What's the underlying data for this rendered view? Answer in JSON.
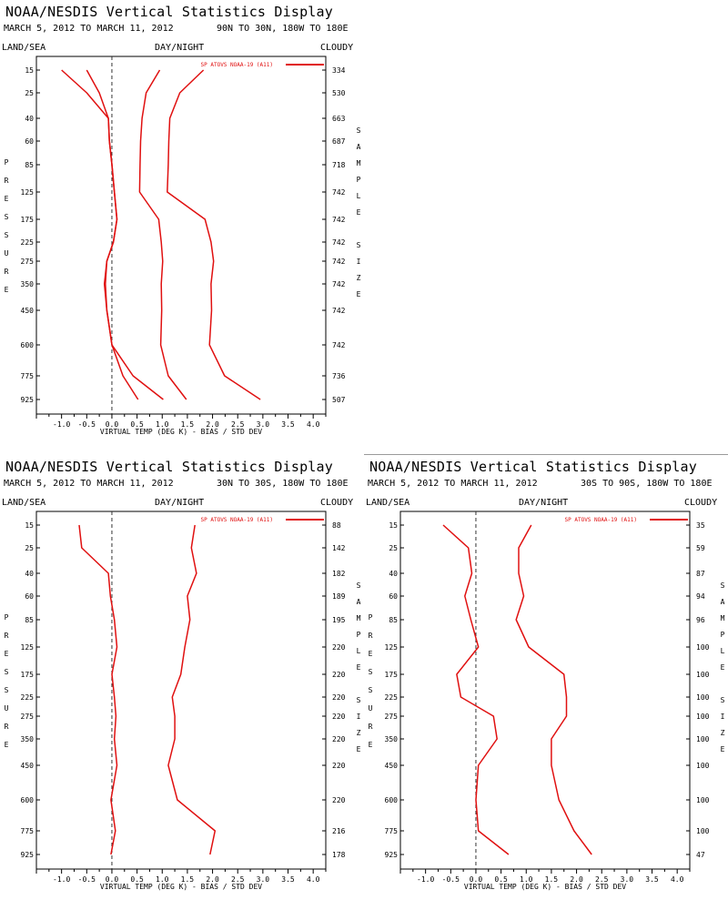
{
  "panels": [
    {
      "title": "NOAA/NESDIS Vertical Statistics Display",
      "date_range": "MARCH 5, 2012 TO MARCH 11, 2012",
      "region": "90N TO 30N, 180W TO 180E",
      "land_sea": "LAND/SEA",
      "day_night": "DAY/NIGHT",
      "cloudy": "CLOUDY"
    },
    {
      "title": "NOAA/NESDIS Vertical Statistics Display",
      "date_range": "MARCH 5, 2012 TO MARCH 11, 2012",
      "region": "30N TO 30S, 180W TO 180E",
      "land_sea": "LAND/SEA",
      "day_night": "DAY/NIGHT",
      "cloudy": "CLOUDY"
    },
    {
      "title": "NOAA/NESDIS Vertical Statistics Display",
      "date_range": "MARCH 5, 2012 TO MARCH 11, 2012",
      "region": "30S TO 90S, 180W TO 180E",
      "land_sea": "LAND/SEA",
      "day_night": "DAY/NIGHT",
      "cloudy": "CLOUDY"
    }
  ],
  "chart_data": [
    {
      "type": "line",
      "legend": "SP ATOVS NOAA-19 (A11)",
      "xlabel": "VIRTUAL TEMP (DEG K) - BIAS / STD DEV",
      "ylabel": "PRESSURE",
      "right_label": "SAMPLE SIZE",
      "xlim": [
        -1.5,
        4.25
      ],
      "x_ticks": [
        "-1.0",
        "-0.5",
        "0.0",
        "0.5",
        "1.0",
        "1.5",
        "2.0",
        "2.5",
        "3.0",
        "3.5",
        "4.0"
      ],
      "pressure_levels": [
        "15",
        "25",
        "40",
        "60",
        "85",
        "125",
        "175",
        "225",
        "275",
        "350",
        "450",
        "600",
        "775",
        "925"
      ],
      "sample_size": [
        "334",
        "530",
        "663",
        "687",
        "718",
        "742",
        "742",
        "742",
        "742",
        "742",
        "742",
        "742",
        "736",
        "507"
      ],
      "series": [
        {
          "name": "bias",
          "values": [
            -0.5,
            -0.25,
            -0.07,
            -0.05,
            0.0,
            0.05,
            0.1,
            0.03,
            -0.1,
            -0.13,
            -0.1,
            0.0,
            0.22,
            0.52
          ]
        },
        {
          "name": "std_dev",
          "values": [
            0.95,
            0.68,
            0.6,
            0.57,
            0.56,
            0.55,
            0.93,
            0.98,
            1.01,
            0.98,
            0.99,
            0.97,
            1.12,
            1.48
          ]
        },
        {
          "name": "bias",
          "values": [
            -1.0,
            -0.5,
            -0.07,
            -0.05,
            0.0,
            0.05,
            0.1,
            0.03,
            -0.1,
            -0.15,
            -0.1,
            0.0,
            0.42,
            1.02
          ]
        },
        {
          "name": "std_dev",
          "values": [
            1.82,
            1.35,
            1.15,
            1.13,
            1.12,
            1.1,
            1.85,
            1.97,
            2.02,
            1.97,
            1.98,
            1.94,
            2.24,
            2.95
          ]
        }
      ]
    },
    {
      "type": "line",
      "legend": "SP ATOVS NOAA-19 (A11)",
      "xlabel": "VIRTUAL TEMP (DEG K) - BIAS / STD DEV",
      "ylabel": "PRESSURE",
      "right_label": "SAMPLE SIZE",
      "xlim": [
        -1.5,
        4.25
      ],
      "x_ticks": [
        "-1.0",
        "-0.5",
        "0.0",
        "0.5",
        "1.0",
        "1.5",
        "2.0",
        "2.5",
        "3.0",
        "3.5",
        "4.0"
      ],
      "pressure_levels": [
        "15",
        "25",
        "40",
        "60",
        "85",
        "125",
        "175",
        "225",
        "275",
        "350",
        "450",
        "600",
        "775",
        "925"
      ],
      "sample_size": [
        "88",
        "142",
        "182",
        "189",
        "195",
        "220",
        "220",
        "220",
        "220",
        "220",
        "220",
        "220",
        "216",
        "178"
      ],
      "series": [
        {
          "name": "bias",
          "values": [
            -0.65,
            -0.6,
            -0.07,
            -0.03,
            0.05,
            0.1,
            0.0,
            0.05,
            0.08,
            0.05,
            0.1,
            -0.02,
            0.07,
            -0.02
          ]
        },
        {
          "name": "std_dev",
          "values": [
            1.65,
            1.58,
            1.68,
            1.5,
            1.55,
            1.45,
            1.37,
            1.2,
            1.25,
            1.25,
            1.12,
            1.3,
            2.05,
            1.95
          ]
        }
      ]
    },
    {
      "type": "line",
      "legend": "SP ATOVS NOAA-19 (A11)",
      "xlabel": "VIRTUAL TEMP (DEG K) - BIAS / STD DEV",
      "ylabel": "PRESSURE",
      "right_label": "SAMPLE SIZE",
      "xlim": [
        -1.5,
        4.25
      ],
      "x_ticks": [
        "-1.0",
        "-0.5",
        "0.0",
        "0.5",
        "1.0",
        "1.5",
        "2.0",
        "2.5",
        "3.0",
        "3.5",
        "4.0"
      ],
      "pressure_levels": [
        "15",
        "25",
        "40",
        "60",
        "85",
        "125",
        "175",
        "225",
        "275",
        "350",
        "450",
        "600",
        "775",
        "925"
      ],
      "sample_size": [
        "35",
        "59",
        "87",
        "94",
        "96",
        "100",
        "100",
        "100",
        "100",
        "100",
        "100",
        "100",
        "100",
        "47"
      ],
      "series": [
        {
          "name": "bias",
          "values": [
            -0.65,
            -0.15,
            -0.08,
            -0.22,
            -0.1,
            0.05,
            -0.38,
            -0.3,
            0.35,
            0.42,
            0.05,
            0.0,
            0.05,
            0.65
          ]
        },
        {
          "name": "std_dev",
          "values": [
            1.1,
            0.85,
            0.85,
            0.95,
            0.8,
            1.05,
            1.75,
            1.8,
            1.8,
            1.5,
            1.5,
            1.65,
            1.95,
            2.3
          ]
        }
      ]
    }
  ]
}
